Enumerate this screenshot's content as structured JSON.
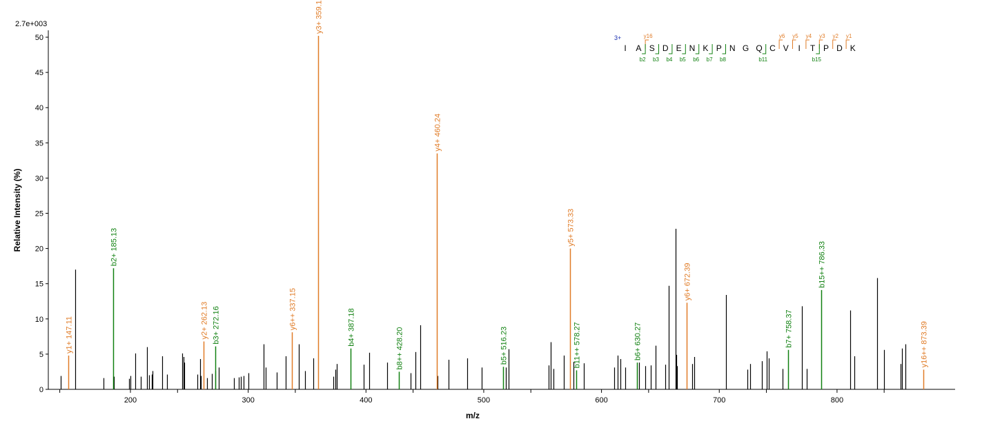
{
  "chart_data": {
    "type": "bar",
    "xlabel": "m/z",
    "ylabel": "Relative   Intensity (%)",
    "scale_label": "2.7e+003",
    "xlim": [
      135,
      900
    ],
    "ylim": [
      0,
      50
    ],
    "xticks_labeled": [
      200,
      300,
      400,
      500,
      600,
      700,
      800
    ],
    "xticks_minor": [
      140,
      240,
      340,
      440,
      540,
      640,
      740,
      840
    ],
    "yticks": [
      0,
      5,
      10,
      15,
      20,
      25,
      30,
      35,
      40,
      45,
      50
    ],
    "colors": {
      "unmatched": "#000000",
      "y_ion": "#e07b26",
      "b_ion": "#108010",
      "charge": "#1a2fb0"
    },
    "unmatched_peaks": [
      [
        141,
        1.9
      ],
      [
        153,
        17
      ],
      [
        177,
        1.6
      ],
      [
        186,
        1.8
      ],
      [
        199,
        1.5
      ],
      [
        200,
        1.9
      ],
      [
        204,
        5.1
      ],
      [
        209,
        1.8
      ],
      [
        214,
        6
      ],
      [
        216,
        2
      ],
      [
        218,
        2.1
      ],
      [
        219,
        2.6
      ],
      [
        227,
        4.7
      ],
      [
        231,
        2.1
      ],
      [
        244,
        5.1
      ],
      [
        245,
        4.6
      ],
      [
        246,
        3.8
      ],
      [
        257,
        2.1
      ],
      [
        259,
        4.3
      ],
      [
        260,
        1.9
      ],
      [
        265,
        1.6
      ],
      [
        269,
        2.2
      ],
      [
        272,
        2.6
      ],
      [
        275,
        3.1
      ],
      [
        288,
        1.6
      ],
      [
        292,
        1.7
      ],
      [
        294,
        1.8
      ],
      [
        296,
        1.9
      ],
      [
        300,
        2.3
      ],
      [
        313,
        6.4
      ],
      [
        315,
        3.1
      ],
      [
        324,
        2.4
      ],
      [
        332,
        4.7
      ],
      [
        343,
        6.4
      ],
      [
        348,
        2.6
      ],
      [
        355,
        4.4
      ],
      [
        372,
        1.8
      ],
      [
        374,
        2.8
      ],
      [
        375,
        3.6
      ],
      [
        398,
        3.5
      ],
      [
        403,
        5.2
      ],
      [
        418,
        3.8
      ],
      [
        438,
        2.3
      ],
      [
        442,
        5.3
      ],
      [
        446,
        9.1
      ],
      [
        461,
        1.9
      ],
      [
        470,
        4.2
      ],
      [
        486,
        4.4
      ],
      [
        498,
        3.1
      ],
      [
        519,
        3.1
      ],
      [
        521,
        5.7
      ],
      [
        555,
        3.4
      ],
      [
        557,
        6.7
      ],
      [
        559,
        2.9
      ],
      [
        568,
        4.8
      ],
      [
        576,
        3.9
      ],
      [
        585,
        3.7
      ],
      [
        611,
        3.1
      ],
      [
        614,
        4.8
      ],
      [
        616,
        4.3
      ],
      [
        620,
        3.1
      ],
      [
        632,
        3.8
      ],
      [
        637,
        3.3
      ],
      [
        642,
        3.4
      ],
      [
        646,
        6.2
      ],
      [
        654,
        3.5
      ],
      [
        657,
        14.7
      ],
      [
        663,
        22.8
      ],
      [
        663.5,
        4.9
      ],
      [
        664,
        3.3
      ],
      [
        677,
        3.6
      ],
      [
        679,
        4.6
      ],
      [
        706,
        13.4
      ],
      [
        724,
        2.8
      ],
      [
        726,
        3.6
      ],
      [
        736,
        4
      ],
      [
        740,
        5.4
      ],
      [
        742,
        4.4
      ],
      [
        754,
        2.9
      ],
      [
        770,
        11.8
      ],
      [
        774,
        2.9
      ],
      [
        811,
        11.2
      ],
      [
        815,
        4.7
      ],
      [
        834,
        15.8
      ],
      [
        840,
        5.6
      ],
      [
        854,
        3.6
      ],
      [
        855,
        5.8
      ],
      [
        858,
        6.4
      ]
    ],
    "annotated_peaks": [
      {
        "x": 147.11,
        "y": 4.8,
        "ion": "y",
        "label": "y1+ 147.11"
      },
      {
        "x": 185.13,
        "y": 17.2,
        "ion": "b",
        "label": "b2+ 185.13"
      },
      {
        "x": 262.13,
        "y": 6.8,
        "ion": "y",
        "label": "y2+ 262.13"
      },
      {
        "x": 272.16,
        "y": 6.1,
        "ion": "b",
        "label": "b3+ 272.16"
      },
      {
        "x": 337.15,
        "y": 8.1,
        "ion": "y",
        "label": "y6++ 337.15"
      },
      {
        "x": 359.19,
        "y": 50.2,
        "ion": "y",
        "label": "y3+ 359.19"
      },
      {
        "x": 387.18,
        "y": 5.8,
        "ion": "b",
        "label": "b4+ 387.18"
      },
      {
        "x": 428.2,
        "y": 2.5,
        "ion": "b",
        "label": "b8++ 428.20"
      },
      {
        "x": 460.24,
        "y": 33.5,
        "ion": "y",
        "label": "y4+ 460.24"
      },
      {
        "x": 516.23,
        "y": 3.2,
        "ion": "b",
        "label": "b5+ 516.23"
      },
      {
        "x": 573.33,
        "y": 20,
        "ion": "y",
        "label": "y5+ 573.33"
      },
      {
        "x": 578.27,
        "y": 2.7,
        "ion": "b",
        "label": "b11++ 578.27"
      },
      {
        "x": 630.27,
        "y": 3.8,
        "ion": "b",
        "label": "b6+ 630.27"
      },
      {
        "x": 672.39,
        "y": 12.3,
        "ion": "y",
        "label": "y6+ 672.39"
      },
      {
        "x": 758.37,
        "y": 5.6,
        "ion": "b",
        "label": "b7+ 758.37"
      },
      {
        "x": 786.33,
        "y": 14.1,
        "ion": "b",
        "label": "b15++ 786.33"
      },
      {
        "x": 873.39,
        "y": 2.8,
        "ion": "y",
        "label": "y16++ 873.39"
      }
    ],
    "sequence": {
      "charge": "3+",
      "residues": [
        "I",
        "A",
        "S",
        "D",
        "E",
        "N",
        "K",
        "P",
        "N",
        "G",
        "Q",
        "C",
        "V",
        "I",
        "T",
        "P",
        "D",
        "K"
      ],
      "y_ions": [
        {
          "after": 2,
          "label": "y16"
        },
        {
          "after": 12,
          "label": "y6"
        },
        {
          "after": 13,
          "label": "y5"
        },
        {
          "after": 14,
          "label": "y4"
        },
        {
          "after": 15,
          "label": "y3"
        },
        {
          "after": 16,
          "label": "y2"
        },
        {
          "after": 17,
          "label": "y1"
        }
      ],
      "b_ions": [
        {
          "after": 2,
          "label": "b2"
        },
        {
          "after": 3,
          "label": "b3"
        },
        {
          "after": 4,
          "label": "b4"
        },
        {
          "after": 5,
          "label": "b5"
        },
        {
          "after": 6,
          "label": "b6"
        },
        {
          "after": 7,
          "label": "b7"
        },
        {
          "after": 8,
          "label": "b8"
        },
        {
          "after": 11,
          "label": "b11"
        },
        {
          "after": 15,
          "label": "b15"
        }
      ]
    }
  }
}
